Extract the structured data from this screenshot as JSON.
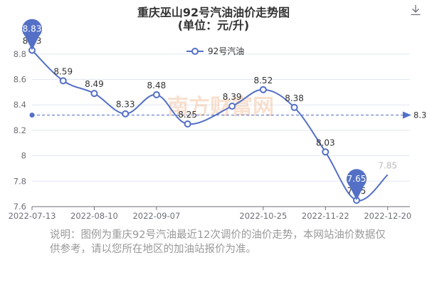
{
  "titles": {
    "line1": "重庆巫山92号汽油油价走势图",
    "line2": "(单位：元/升)"
  },
  "icons": {
    "download": "download-icon"
  },
  "watermark": "南方财富网",
  "note": "说明：图例为重庆92号汽油最近12次调价的油价走势，本网站油价数据仅供参考，请以您所在地区的加油站报价为准。",
  "colors": {
    "series": "#5470c6",
    "axis": "#6e7079",
    "grid": "#e0e6f1",
    "label": "#333333",
    "watermark": "#f3c6a8"
  },
  "chart_data": {
    "type": "line",
    "title": "重庆巫山92号汽油油价走势图",
    "subtitle": "(单位：元/升)",
    "legend": {
      "entries": [
        "92号汽油"
      ],
      "position": "top-center"
    },
    "x_ticks": [
      "2022-07-13",
      "2022-08-10",
      "2022-09-07",
      "2022-10-25",
      "2022-11-22",
      "2022-12-20"
    ],
    "ylim": [
      7.6,
      8.9
    ],
    "y_ticks": [
      "7.6",
      "7.8",
      "8",
      "8.2",
      "8.4",
      "8.6",
      "8.8"
    ],
    "grid": true,
    "series": [
      {
        "name": "92号汽油",
        "smooth": true,
        "points": [
          {
            "x": "2022-07-13",
            "y": 8.83,
            "label": "8.83"
          },
          {
            "x": "2022-07-27",
            "y": 8.59,
            "label": "8.59"
          },
          {
            "x": "2022-08-10",
            "y": 8.49,
            "label": "8.49"
          },
          {
            "x": "2022-08-24",
            "y": 8.33,
            "label": "8.33"
          },
          {
            "x": "2022-09-07",
            "y": 8.48,
            "label": "8.48"
          },
          {
            "x": "2022-09-21",
            "y": 8.25,
            "label": "8.25"
          },
          {
            "x": "2022-10-11",
            "y": 8.39,
            "label": "8.39"
          },
          {
            "x": "2022-10-25",
            "y": 8.52,
            "label": "8.52"
          },
          {
            "x": "2022-11-08",
            "y": 8.38,
            "label": "8.38"
          },
          {
            "x": "2022-11-22",
            "y": 8.03,
            "label": "8.03"
          },
          {
            "x": "2022-12-06",
            "y": 7.65,
            "label": "7.65"
          },
          {
            "x": "2022-12-20",
            "y": 7.85,
            "label": "7.85"
          }
        ]
      }
    ],
    "max_marker": {
      "value": 8.83,
      "label": "8.83"
    },
    "min_marker": {
      "value": 7.65,
      "label": "7.65"
    },
    "average_line": {
      "value": 8.32,
      "label": "8.3"
    }
  }
}
